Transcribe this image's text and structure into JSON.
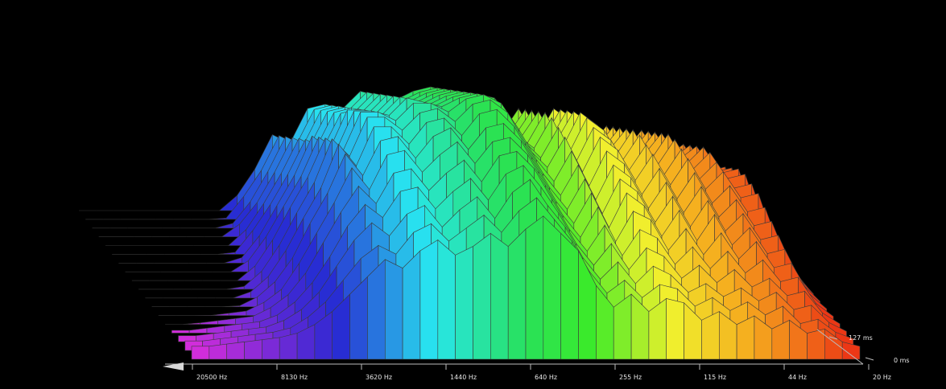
{
  "chart_data": {
    "type": "area",
    "x_tick_labels": [
      "20500 Hz",
      "8130 Hz",
      "3620 Hz",
      "1440 Hz",
      "640 Hz",
      "255 Hz",
      "115 Hz",
      "44 Hz",
      "20 Hz"
    ],
    "z_tick_labels": [
      "127 ms",
      "0 ms"
    ],
    "x_scale": "log",
    "grid": false,
    "legend": "none",
    "colors": {
      "background": "#000000",
      "axis": "#bbbbbb",
      "mesh": "#3a3a3a",
      "label": "#e8e8e8"
    },
    "slice_count": 18,
    "series": [
      {
        "values": [
          0.06,
          0.06,
          0.07,
          0.08,
          0.09,
          0.1,
          0.12,
          0.16,
          0.22,
          0.3,
          0.38,
          0.46,
          0.42,
          0.5,
          0.55,
          0.48,
          0.52,
          0.58,
          0.52,
          0.6,
          0.66,
          0.58,
          0.5,
          0.34,
          0.24,
          0.3,
          0.22,
          0.28,
          0.26,
          0.18,
          0.22,
          0.16,
          0.2,
          0.14,
          0.18,
          0.12,
          0.14,
          0.08,
          0.06
        ]
      },
      {
        "values": [
          0.06,
          0.06,
          0.07,
          0.08,
          0.09,
          0.1,
          0.12,
          0.17,
          0.24,
          0.34,
          0.44,
          0.5,
          0.46,
          0.56,
          0.6,
          0.52,
          0.58,
          0.64,
          0.56,
          0.66,
          0.72,
          0.62,
          0.52,
          0.38,
          0.28,
          0.34,
          0.26,
          0.32,
          0.3,
          0.22,
          0.26,
          0.2,
          0.24,
          0.18,
          0.22,
          0.14,
          0.16,
          0.1,
          0.07
        ]
      },
      {
        "values": [
          0.06,
          0.06,
          0.07,
          0.08,
          0.09,
          0.1,
          0.13,
          0.18,
          0.26,
          0.38,
          0.5,
          0.58,
          0.52,
          0.62,
          0.66,
          0.56,
          0.64,
          0.7,
          0.6,
          0.72,
          0.78,
          0.66,
          0.56,
          0.42,
          0.32,
          0.4,
          0.3,
          0.38,
          0.34,
          0.26,
          0.3,
          0.24,
          0.28,
          0.22,
          0.26,
          0.18,
          0.2,
          0.12,
          0.08
        ]
      },
      {
        "values": [
          0.06,
          0.06,
          0.07,
          0.08,
          0.09,
          0.1,
          0.13,
          0.19,
          0.28,
          0.4,
          0.54,
          0.64,
          0.58,
          0.7,
          0.72,
          0.62,
          0.7,
          0.76,
          0.66,
          0.78,
          0.82,
          0.72,
          0.6,
          0.46,
          0.36,
          0.46,
          0.34,
          0.44,
          0.4,
          0.3,
          0.36,
          0.28,
          0.34,
          0.26,
          0.3,
          0.22,
          0.24,
          0.14,
          0.09
        ]
      },
      {
        "values": [
          0.06,
          0.06,
          0.07,
          0.08,
          0.09,
          0.1,
          0.14,
          0.2,
          0.3,
          0.44,
          0.58,
          0.7,
          0.62,
          0.76,
          0.78,
          0.68,
          0.76,
          0.82,
          0.72,
          0.84,
          0.86,
          0.78,
          0.64,
          0.5,
          0.4,
          0.52,
          0.38,
          0.5,
          0.46,
          0.34,
          0.42,
          0.32,
          0.4,
          0.3,
          0.36,
          0.26,
          0.28,
          0.16,
          0.1
        ]
      },
      {
        "values": [
          0.06,
          0.06,
          0.07,
          0.08,
          0.09,
          0.1,
          0.14,
          0.2,
          0.32,
          0.46,
          0.6,
          0.76,
          0.66,
          0.82,
          0.84,
          0.74,
          0.82,
          0.88,
          0.78,
          0.88,
          0.9,
          0.82,
          0.68,
          0.54,
          0.44,
          0.58,
          0.42,
          0.56,
          0.52,
          0.38,
          0.48,
          0.36,
          0.46,
          0.34,
          0.42,
          0.3,
          0.32,
          0.18,
          0.11
        ]
      },
      {
        "values": [
          0.06,
          0.06,
          0.07,
          0.08,
          0.09,
          0.1,
          0.14,
          0.21,
          0.32,
          0.48,
          0.62,
          0.8,
          0.7,
          0.86,
          0.88,
          0.78,
          0.88,
          0.92,
          0.82,
          0.92,
          0.94,
          0.86,
          0.72,
          0.58,
          0.48,
          0.62,
          0.46,
          0.62,
          0.56,
          0.42,
          0.54,
          0.4,
          0.52,
          0.38,
          0.46,
          0.34,
          0.36,
          0.2,
          0.12
        ]
      },
      {
        "values": [
          0.06,
          0.06,
          0.07,
          0.08,
          0.09,
          0.1,
          0.14,
          0.21,
          0.33,
          0.48,
          0.62,
          0.82,
          0.72,
          0.9,
          0.9,
          0.82,
          0.92,
          0.94,
          0.86,
          0.96,
          0.98,
          0.9,
          0.76,
          0.62,
          0.52,
          0.66,
          0.5,
          0.66,
          0.6,
          0.46,
          0.58,
          0.44,
          0.56,
          0.42,
          0.5,
          0.38,
          0.4,
          0.22,
          0.13
        ]
      },
      {
        "values": [
          0.06,
          0.06,
          0.07,
          0.08,
          0.09,
          0.1,
          0.14,
          0.21,
          0.33,
          0.48,
          0.62,
          0.82,
          0.74,
          0.92,
          0.92,
          0.86,
          0.94,
          0.96,
          0.9,
          0.98,
          1.0,
          0.94,
          0.8,
          0.66,
          0.56,
          0.7,
          0.54,
          0.7,
          0.64,
          0.5,
          0.62,
          0.48,
          0.6,
          0.46,
          0.54,
          0.42,
          0.44,
          0.24,
          0.14
        ]
      },
      {
        "values": [
          0.06,
          0.06,
          0.07,
          0.08,
          0.09,
          0.1,
          0.14,
          0.21,
          0.33,
          0.48,
          0.62,
          0.8,
          0.74,
          0.92,
          0.92,
          0.88,
          0.96,
          0.96,
          0.92,
          0.98,
          1.0,
          0.96,
          0.84,
          0.7,
          0.6,
          0.74,
          0.58,
          0.74,
          0.68,
          0.54,
          0.66,
          0.52,
          0.64,
          0.5,
          0.58,
          0.46,
          0.48,
          0.26,
          0.15
        ]
      },
      {
        "values": [
          0.06,
          0.06,
          0.07,
          0.08,
          0.09,
          0.1,
          0.14,
          0.21,
          0.32,
          0.46,
          0.6,
          0.78,
          0.72,
          0.9,
          0.9,
          0.88,
          0.96,
          0.94,
          0.92,
          0.96,
          0.98,
          0.96,
          0.86,
          0.72,
          0.64,
          0.78,
          0.62,
          0.78,
          0.72,
          0.58,
          0.7,
          0.56,
          0.68,
          0.54,
          0.62,
          0.5,
          0.52,
          0.28,
          0.16
        ]
      },
      {
        "values": [
          0.06,
          0.06,
          0.07,
          0.08,
          0.09,
          0.1,
          0.13,
          0.2,
          0.3,
          0.44,
          0.58,
          0.76,
          0.7,
          0.88,
          0.88,
          0.86,
          0.94,
          0.92,
          0.9,
          0.94,
          0.96,
          0.94,
          0.86,
          0.74,
          0.66,
          0.8,
          0.64,
          0.8,
          0.74,
          0.6,
          0.72,
          0.58,
          0.7,
          0.56,
          0.64,
          0.52,
          0.54,
          0.3,
          0.17
        ]
      },
      {
        "values": [
          0.06,
          0.06,
          0.07,
          0.08,
          0.09,
          0.1,
          0.13,
          0.2,
          0.3,
          0.42,
          0.56,
          0.72,
          0.68,
          0.84,
          0.86,
          0.84,
          0.92,
          0.9,
          0.88,
          0.92,
          0.94,
          0.92,
          0.86,
          0.74,
          0.68,
          0.82,
          0.66,
          0.82,
          0.76,
          0.62,
          0.74,
          0.6,
          0.72,
          0.58,
          0.66,
          0.54,
          0.56,
          0.32,
          0.18
        ]
      },
      {
        "values": [
          0.06,
          0.06,
          0.07,
          0.08,
          0.09,
          0.1,
          0.13,
          0.19,
          0.28,
          0.4,
          0.54,
          0.7,
          0.66,
          0.82,
          0.84,
          0.82,
          0.9,
          0.88,
          0.86,
          0.9,
          0.92,
          0.9,
          0.84,
          0.74,
          0.68,
          0.82,
          0.66,
          0.82,
          0.76,
          0.62,
          0.74,
          0.6,
          0.72,
          0.58,
          0.66,
          0.54,
          0.56,
          0.32,
          0.18
        ]
      },
      {
        "values": [
          0.06,
          0.06,
          0.07,
          0.08,
          0.09,
          0.1,
          0.13,
          0.19,
          0.28,
          0.38,
          0.52,
          0.68,
          0.64,
          0.8,
          0.82,
          0.8,
          0.88,
          0.86,
          0.84,
          0.88,
          0.9,
          0.88,
          0.82,
          0.72,
          0.68,
          0.8,
          0.66,
          0.8,
          0.74,
          0.62,
          0.72,
          0.6,
          0.7,
          0.58,
          0.64,
          0.52,
          0.54,
          0.32,
          0.18
        ]
      },
      {
        "values": [
          0.06,
          0.06,
          0.07,
          0.08,
          0.09,
          0.1,
          0.12,
          0.18,
          0.26,
          0.36,
          0.5,
          0.66,
          0.62,
          0.78,
          0.8,
          0.78,
          0.86,
          0.84,
          0.82,
          0.86,
          0.88,
          0.86,
          0.8,
          0.7,
          0.66,
          0.78,
          0.64,
          0.78,
          0.72,
          0.6,
          0.7,
          0.58,
          0.68,
          0.56,
          0.62,
          0.5,
          0.52,
          0.3,
          0.17
        ]
      },
      {
        "values": [
          0.06,
          0.06,
          0.07,
          0.08,
          0.09,
          0.1,
          0.12,
          0.18,
          0.26,
          0.36,
          0.48,
          0.64,
          0.6,
          0.76,
          0.78,
          0.76,
          0.84,
          0.82,
          0.8,
          0.84,
          0.86,
          0.84,
          0.78,
          0.68,
          0.64,
          0.76,
          0.62,
          0.76,
          0.7,
          0.58,
          0.68,
          0.56,
          0.66,
          0.54,
          0.6,
          0.48,
          0.5,
          0.28,
          0.16
        ]
      },
      {
        "values": [
          0.06,
          0.06,
          0.07,
          0.08,
          0.09,
          0.1,
          0.12,
          0.18,
          0.26,
          0.34,
          0.46,
          0.62,
          0.58,
          0.74,
          0.76,
          0.74,
          0.82,
          0.8,
          0.78,
          0.82,
          0.84,
          0.82,
          0.76,
          0.66,
          0.62,
          0.74,
          0.6,
          0.74,
          0.68,
          0.56,
          0.66,
          0.54,
          0.64,
          0.52,
          0.58,
          0.46,
          0.48,
          0.26,
          0.15
        ]
      }
    ]
  }
}
